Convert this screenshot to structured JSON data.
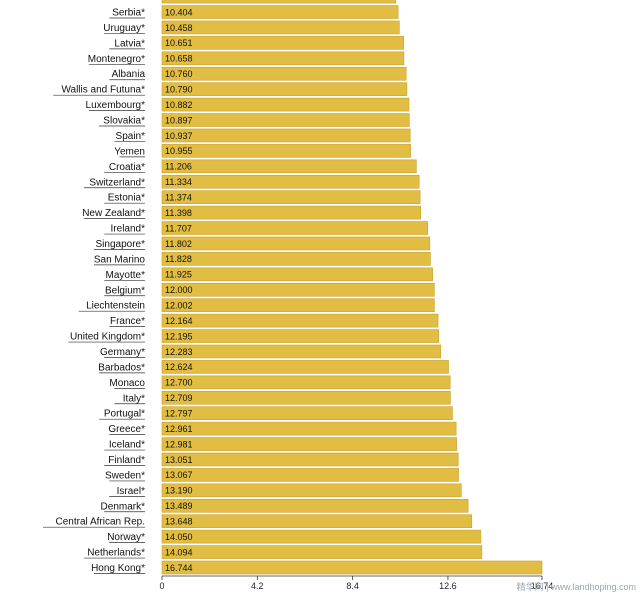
{
  "chart_data": {
    "type": "bar",
    "orientation": "horizontal",
    "categories": [
      "",
      "Serbia*",
      "Uruguay*",
      "Latvia*",
      "Montenegro*",
      "Albania",
      "Wallis and Futuna*",
      "Luxembourg*",
      "Slovakia*",
      "Spain*",
      "Yemen",
      "Croatia*",
      "Switzerland*",
      "Estonia*",
      "New Zealand*",
      "Ireland*",
      "Singapore*",
      "San Marino",
      "Mayotte*",
      "Belgium*",
      "Liechtenstein",
      "France*",
      "United Kingdom*",
      "Germany*",
      "Barbados*",
      "Monaco",
      "Italy*",
      "Portugal*",
      "Greece*",
      "Iceland*",
      "Finland*",
      "Sweden*",
      "Israel*",
      "Denmark*",
      "Central African Rep.",
      "Norway*",
      "Netherlands*",
      "Hong Kong*"
    ],
    "values": [
      10.3,
      10.404,
      10.458,
      10.651,
      10.658,
      10.76,
      10.79,
      10.882,
      10.897,
      10.937,
      10.955,
      11.206,
      11.334,
      11.374,
      11.398,
      11.707,
      11.802,
      11.828,
      11.925,
      12.0,
      12.002,
      12.164,
      12.195,
      12.283,
      12.624,
      12.7,
      12.709,
      12.797,
      12.961,
      12.981,
      13.051,
      13.067,
      13.19,
      13.489,
      13.648,
      14.05,
      14.094,
      16.744
    ],
    "value_labels": [
      "",
      "10.404",
      "10.458",
      "10.651",
      "10.658",
      "10.760",
      "10.790",
      "10.882",
      "10.897",
      "10.937",
      "10.955",
      "11.206",
      "11.334",
      "11.374",
      "11.398",
      "11.707",
      "11.802",
      "11.828",
      "11.925",
      "12.000",
      "12.002",
      "12.164",
      "12.195",
      "12.283",
      "12.624",
      "12.700",
      "12.709",
      "12.797",
      "12.961",
      "12.981",
      "13.051",
      "13.067",
      "13.190",
      "13.489",
      "13.648",
      "14.050",
      "14.094",
      "16.744"
    ],
    "x_ticks": [
      "0",
      "4.2",
      "8.4",
      "12.6",
      "16.74"
    ],
    "x_tick_values": [
      0,
      4.2,
      8.4,
      12.6,
      16.744
    ],
    "xlim": [
      0,
      16.744
    ],
    "bar_color": "#e2bd43",
    "bar_border_color": "#c9a12b",
    "title": "",
    "xlabel": "",
    "ylabel": ""
  },
  "watermark": "精华网 | www.landhoping.com"
}
